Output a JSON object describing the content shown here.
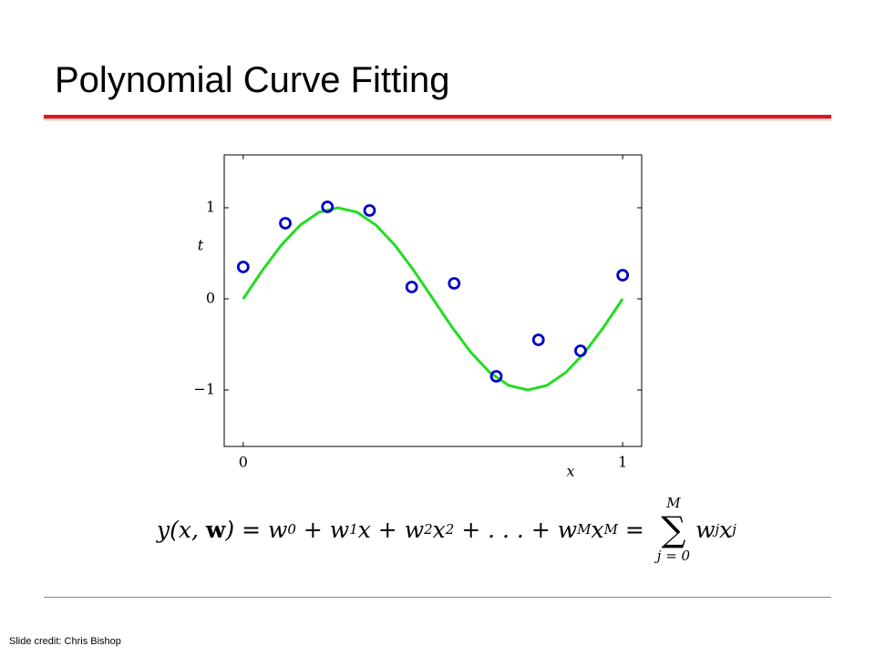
{
  "title": "Polynomial Curve Fitting",
  "chart_data": {
    "type": "scatter",
    "xlabel": "x",
    "ylabel": "t",
    "xlim": [
      -0.05,
      1.05
    ],
    "ylim": [
      -1.62,
      1.58
    ],
    "xticks": [
      0,
      1
    ],
    "yticks": [
      {
        "value": -1,
        "label": "−1"
      },
      0,
      1
    ],
    "series": [
      {
        "type": "scatter",
        "color": "#0000cc",
        "x": [
          0,
          0.111,
          0.222,
          0.333,
          0.444,
          0.556,
          0.667,
          0.778,
          0.889,
          1
        ],
        "values": [
          0.35,
          0.83,
          1.01,
          0.97,
          0.13,
          0.17,
          -0.85,
          -0.45,
          -0.57,
          0.26
        ]
      },
      {
        "type": "line",
        "color": "#22dd22",
        "x": [
          0,
          0.05,
          0.1,
          0.15,
          0.2,
          0.25,
          0.3,
          0.35,
          0.4,
          0.45,
          0.5,
          0.55,
          0.6,
          0.65,
          0.7,
          0.75,
          0.8,
          0.85,
          0.9,
          0.95,
          1
        ],
        "values": [
          0,
          0.309,
          0.588,
          0.809,
          0.951,
          1,
          0.951,
          0.809,
          0.588,
          0.309,
          0,
          -0.309,
          -0.588,
          -0.809,
          -0.951,
          -1,
          -0.951,
          -0.809,
          -0.588,
          -0.309,
          0
        ]
      }
    ]
  },
  "formula": {
    "lhs": [
      {
        "text": "y(x, "
      },
      {
        "text": "w",
        "style": "bold"
      },
      {
        "text": ") = w"
      },
      {
        "text": "0",
        "style": "sub"
      },
      {
        "text": " + w"
      },
      {
        "text": "1",
        "style": "sub"
      },
      {
        "text": "x + w"
      },
      {
        "text": "2",
        "style": "sub"
      },
      {
        "text": "x"
      },
      {
        "text": "2",
        "style": "sup"
      },
      {
        "text": " + . . . + w"
      },
      {
        "text": "M",
        "style": "sub"
      },
      {
        "text": "x"
      },
      {
        "text": "M",
        "style": "sup"
      },
      {
        "text": " = "
      }
    ],
    "sum": {
      "upper": "M",
      "symbol": "∑",
      "lower": "j = 0"
    },
    "rhs": [
      {
        "text": "w"
      },
      {
        "text": "j",
        "style": "sub"
      },
      {
        "text": "x"
      },
      {
        "text": "j",
        "style": "sup"
      }
    ]
  },
  "credit": "Slide credit: Chris Bishop"
}
